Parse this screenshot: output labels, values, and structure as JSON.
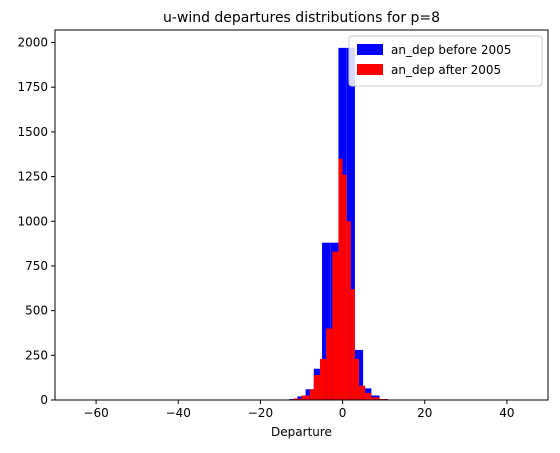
{
  "chart_data": {
    "type": "histogram",
    "title": "u-wind departures distributions for p=8",
    "xlabel": "Departure",
    "ylabel": "",
    "xlim": [
      -70,
      50
    ],
    "ylim": [
      0,
      2070
    ],
    "xticks": [
      -60,
      -40,
      -20,
      0,
      20,
      40
    ],
    "yticks": [
      0,
      250,
      500,
      750,
      1000,
      1250,
      1500,
      1750,
      2000
    ],
    "grid": false,
    "legend_position": "top-right",
    "colors": {
      "before": "#0000ff",
      "after": "#ff0000"
    },
    "series": [
      {
        "name": "an_dep before 2005",
        "color": "#0000ff",
        "bins": [
          {
            "x0": -13.0,
            "x1": -11.0,
            "value": 5
          },
          {
            "x0": -11.0,
            "x1": -9.0,
            "value": 20
          },
          {
            "x0": -9.0,
            "x1": -7.0,
            "value": 60
          },
          {
            "x0": -7.0,
            "x1": -5.0,
            "value": 175
          },
          {
            "x0": -5.0,
            "x1": -3.0,
            "value": 880
          },
          {
            "x0": -3.0,
            "x1": -1.0,
            "value": 880
          },
          {
            "x0": -1.0,
            "x1": 1.0,
            "value": 1970
          },
          {
            "x0": 1.0,
            "x1": 3.0,
            "value": 1970
          },
          {
            "x0": 3.0,
            "x1": 5.0,
            "value": 280
          },
          {
            "x0": 5.0,
            "x1": 7.0,
            "value": 65
          },
          {
            "x0": 7.0,
            "x1": 9.0,
            "value": 25
          },
          {
            "x0": 9.0,
            "x1": 11.0,
            "value": 5
          }
        ]
      },
      {
        "name": "an_dep after 2005",
        "color": "#ff0000",
        "bins": [
          {
            "x0": -14.0,
            "x1": -12.0,
            "value": 3
          },
          {
            "x0": -12.0,
            "x1": -10.0,
            "value": 8
          },
          {
            "x0": -10.0,
            "x1": -8.0,
            "value": 25
          },
          {
            "x0": -8.0,
            "x1": -7.0,
            "value": 60
          },
          {
            "x0": -7.0,
            "x1": -5.5,
            "value": 140
          },
          {
            "x0": -5.5,
            "x1": -4.0,
            "value": 230
          },
          {
            "x0": -4.0,
            "x1": -2.5,
            "value": 400
          },
          {
            "x0": -2.5,
            "x1": -1.0,
            "value": 830
          },
          {
            "x0": -1.0,
            "x1": 0.0,
            "value": 1350
          },
          {
            "x0": 0.0,
            "x1": 1.0,
            "value": 1260
          },
          {
            "x0": 1.0,
            "x1": 2.0,
            "value": 1000
          },
          {
            "x0": 2.0,
            "x1": 3.0,
            "value": 620
          },
          {
            "x0": 3.0,
            "x1": 4.0,
            "value": 230
          },
          {
            "x0": 4.0,
            "x1": 5.5,
            "value": 80
          },
          {
            "x0": 5.5,
            "x1": 7.0,
            "value": 40
          },
          {
            "x0": 7.0,
            "x1": 9.0,
            "value": 15
          },
          {
            "x0": 9.0,
            "x1": 11.0,
            "value": 5
          }
        ]
      }
    ]
  }
}
